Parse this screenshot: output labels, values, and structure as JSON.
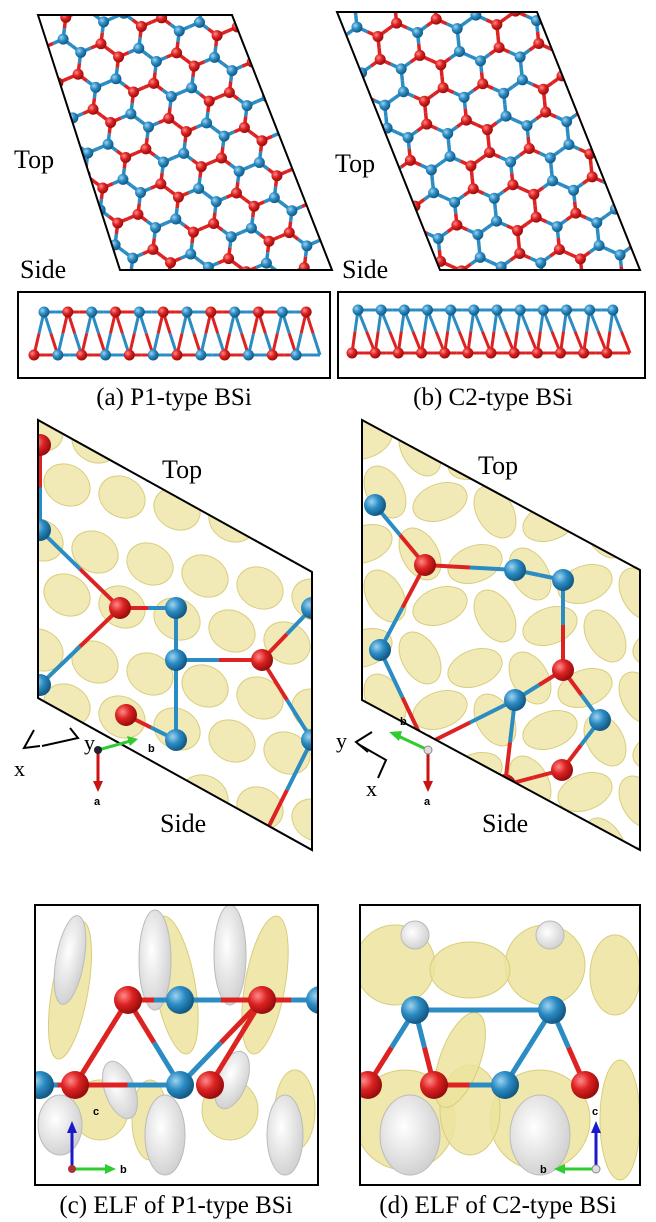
{
  "panels": {
    "a": {
      "top_label": "Top",
      "side_label": "Side",
      "caption": "(a) P1-type BSi"
    },
    "b": {
      "top_label": "Top",
      "side_label": "Side",
      "caption": "(b) C2-type BSi"
    },
    "c": {
      "top_label": "Top",
      "side_label": "Side",
      "caption": "(c) ELF of P1-type BSi",
      "axis_labels": [
        "x",
        "y"
      ],
      "top_lattice_labels": [
        "b",
        "a"
      ],
      "side_lattice_labels": [
        "c",
        "b"
      ]
    },
    "d": {
      "top_label": "Top",
      "side_label": "Side",
      "caption": "(d) ELF of C2-type BSi",
      "axis_labels": [
        "x",
        "y"
      ],
      "top_lattice_labels": [
        "b",
        "a"
      ],
      "side_lattice_labels": [
        "c",
        "b"
      ]
    }
  }
}
